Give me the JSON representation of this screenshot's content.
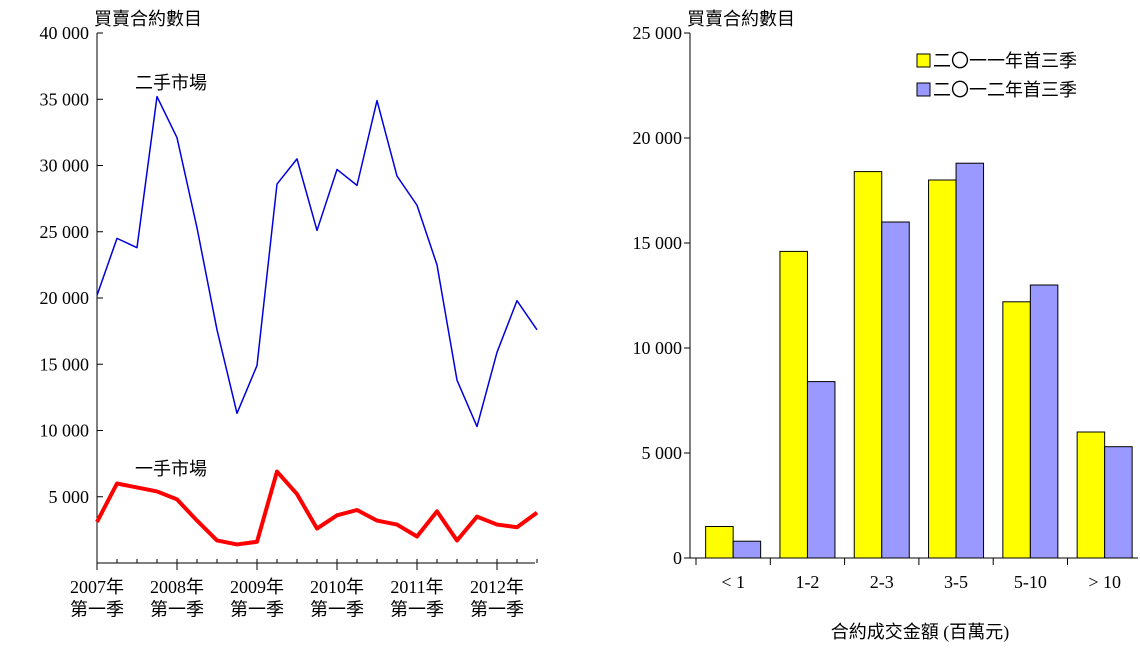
{
  "chart_data": [
    {
      "type": "line",
      "ylabel": "買賣合約數目",
      "categories": [
        "2007年\n第一季",
        null,
        null,
        null,
        "2008年\n第一季",
        null,
        null,
        null,
        "2009年\n第一季",
        null,
        null,
        null,
        "2010年\n第一季",
        null,
        null,
        null,
        "2011年\n第一季",
        null,
        null,
        null,
        "2012年\n第一季",
        null,
        null
      ],
      "series": [
        {
          "name": "二手市場",
          "color": "#0000dd",
          "values": [
            20200,
            24500,
            23800,
            35200,
            32100,
            25300,
            17600,
            11300,
            14900,
            28600,
            30500,
            25100,
            29700,
            28500,
            34900,
            29200,
            27000,
            22500,
            13800,
            10300,
            15900,
            19800,
            17600
          ]
        },
        {
          "name": "一手市場",
          "color": "#ff0000",
          "values": [
            3100,
            6000,
            5700,
            5400,
            4800,
            3200,
            1700,
            1400,
            1600,
            6900,
            5200,
            2600,
            3600,
            4000,
            3200,
            2900,
            2000,
            3900,
            1700,
            3500,
            2900,
            2700,
            3800
          ]
        }
      ],
      "ylim": [
        0,
        40000
      ],
      "yticks": [
        {
          "value": 5000,
          "label": "5 000"
        },
        {
          "value": 10000,
          "label": "10 000"
        },
        {
          "value": 15000,
          "label": "15 000"
        },
        {
          "value": 20000,
          "label": "20 000"
        },
        {
          "value": 25000,
          "label": "25 000"
        },
        {
          "value": 30000,
          "label": "30 000"
        },
        {
          "value": 35000,
          "label": "35 000"
        },
        {
          "value": 40000,
          "label": "40 000"
        }
      ]
    },
    {
      "type": "bar",
      "ylabel": "買賣合約數目",
      "xlabel": "合約成交金額 (百萬元)",
      "categories": [
        "< 1",
        "1-2",
        "2-3",
        "3-5",
        "5-10",
        "> 10"
      ],
      "series": [
        {
          "name": "二〇一一年首三季",
          "color": "#ffff00",
          "values": [
            1500,
            14600,
            18400,
            18000,
            12200,
            6000
          ]
        },
        {
          "name": "二〇一二年首三季",
          "color": "#9999ff",
          "values": [
            800,
            8400,
            16000,
            18800,
            13000,
            5300
          ]
        }
      ],
      "ylim": [
        0,
        25000
      ],
      "yticks": [
        0,
        {
          "value": 5000,
          "label": "5 000"
        },
        {
          "value": 10000,
          "label": "10 000"
        },
        {
          "value": 15000,
          "label": "15 000"
        },
        {
          "value": 20000,
          "label": "20 000"
        },
        {
          "value": 25000,
          "label": "25 000"
        }
      ],
      "legend": "upper right"
    }
  ]
}
